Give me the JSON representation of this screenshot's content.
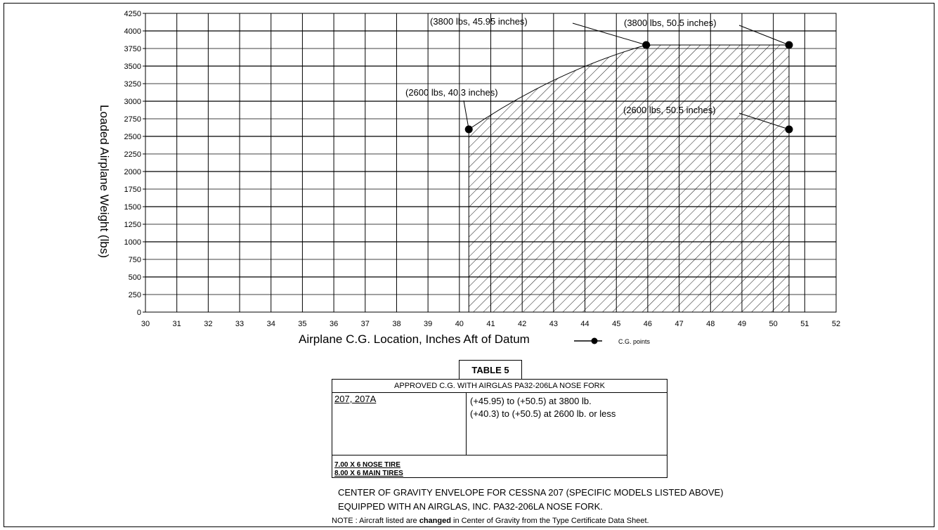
{
  "chart_data": {
    "type": "area",
    "title": "",
    "xlabel": "Airplane C.G. Location, Inches Aft of Datum",
    "ylabel": "Loaded Airplane Weight (lbs)",
    "xlim": [
      30,
      52
    ],
    "ylim": [
      0,
      4250
    ],
    "xticks": [
      30,
      31,
      32,
      33,
      34,
      35,
      36,
      37,
      38,
      39,
      40,
      41,
      42,
      43,
      44,
      45,
      46,
      47,
      48,
      49,
      50,
      51,
      52
    ],
    "yticks": [
      0,
      250,
      500,
      750,
      1000,
      1250,
      1500,
      1750,
      2000,
      2250,
      2500,
      2750,
      3000,
      3250,
      3500,
      3750,
      4000,
      4250
    ],
    "grid": true,
    "legend": {
      "label": "C.G. points",
      "placement": "bottom"
    },
    "envelope": [
      {
        "x": 40.3,
        "y": 0
      },
      {
        "x": 40.3,
        "y": 2600
      },
      {
        "x": 45.95,
        "y": 3800
      },
      {
        "x": 50.5,
        "y": 3800
      },
      {
        "x": 50.5,
        "y": 0
      }
    ],
    "points": [
      {
        "x": 45.95,
        "y": 3800,
        "label": "(3800 lbs, 45.95 inches)"
      },
      {
        "x": 50.5,
        "y": 3800,
        "label": "(3800 lbs, 50.5 inches)"
      },
      {
        "x": 40.3,
        "y": 2600,
        "label": "(2600 lbs, 40.3 inches)"
      },
      {
        "x": 50.5,
        "y": 2600,
        "label": "(2600 lbs, 50.5 inches)"
      }
    ]
  },
  "table": {
    "caption": "TABLE 5",
    "header": "APPROVED C.G. WITH AIRGLAS PA32-206LA NOSE FORK",
    "models": "207, 207A",
    "limit_1": "(+45.95) to (+50.5) at 3800 lb.",
    "limit_2": "(+40.3) to (+50.5) at 2600 lb. or less",
    "tire_1": "7.00 X 6 NOSE TIRE",
    "tire_2": "8.00 X 6 MAIN TIRES"
  },
  "caption": {
    "line_1": "CENTER OF GRAVITY ENVELOPE FOR CESSNA 207 (SPECIFIC MODELS LISTED ABOVE)",
    "line_2": "EQUIPPED WITH AN AIRGLAS, INC. PA32-206LA NOSE FORK."
  },
  "note": {
    "prefix": "NOTE :  Aircraft listed are ",
    "emphasis": "changed",
    "suffix": " in Center of Gravity from the Type Certificate Data Sheet."
  }
}
